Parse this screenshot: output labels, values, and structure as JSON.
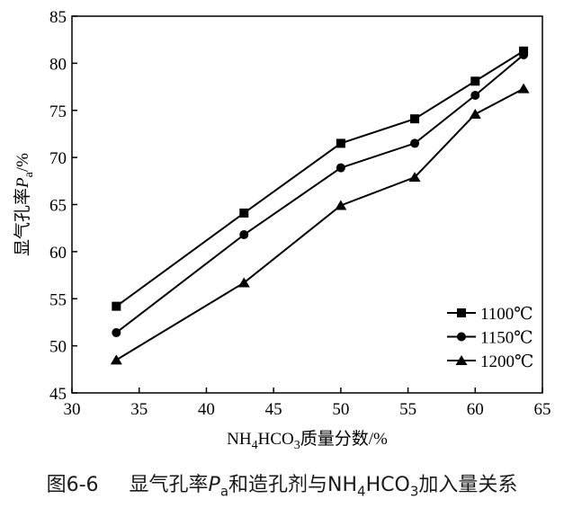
{
  "caption": {
    "number": "图6-6",
    "text_a": "显气孔率",
    "symbol": "P",
    "symbol_sub": "a",
    "text_b": "和造孔剂与NH",
    "sub1": "4",
    "text_c": "HCO",
    "sub2": "3",
    "text_d": "加入量关系"
  },
  "chart_data": {
    "type": "line",
    "xlabel": {
      "pre": "NH",
      "sub1": "4",
      "mid": "HCO",
      "sub2": "3",
      "post": "质量分数/%"
    },
    "ylabel": {
      "pre": "显气孔率",
      "symbol": "P",
      "sub": "a",
      "post": "/%"
    },
    "xlim": [
      30,
      65
    ],
    "ylim": [
      45,
      85
    ],
    "xticks": [
      30,
      35,
      40,
      45,
      50,
      55,
      60,
      65
    ],
    "yticks": [
      45,
      50,
      55,
      60,
      65,
      70,
      75,
      80,
      85
    ],
    "grid": false,
    "legend_position": "bottom-right",
    "x": [
      33.3,
      42.8,
      50.0,
      55.5,
      60.0,
      63.6
    ],
    "series": [
      {
        "name": "1100℃",
        "marker": "square",
        "values": [
          54.2,
          64.1,
          71.5,
          74.1,
          78.1,
          81.3
        ]
      },
      {
        "name": "1150℃",
        "marker": "circle",
        "values": [
          51.4,
          61.8,
          68.9,
          71.5,
          76.6,
          80.9
        ]
      },
      {
        "name": "1200℃",
        "marker": "triangle",
        "values": [
          48.5,
          56.7,
          64.9,
          67.9,
          74.6,
          77.3
        ]
      }
    ]
  }
}
